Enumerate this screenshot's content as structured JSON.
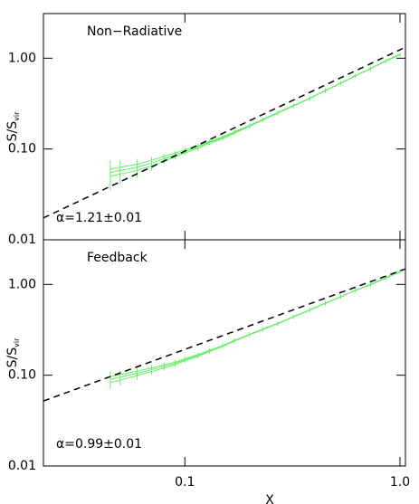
{
  "chart_data": [
    {
      "type": "line",
      "annotation": "Non−Radiative",
      "annotation_color": "#ff3030",
      "fit_label": "α=1.21±0.01",
      "ylabel": "S/S",
      "ylabel_sub": "vir",
      "xlim": [
        0.022,
        1.06
      ],
      "ylim": [
        0.01,
        3.1
      ],
      "log": true,
      "yticks": [
        {
          "value": 0.01,
          "label": "0.01"
        },
        {
          "value": 0.1,
          "label": "0.10"
        },
        {
          "value": 1,
          "label": "1.00"
        }
      ],
      "x": [
        0.045,
        0.05,
        0.06,
        0.07,
        0.08,
        0.09,
        0.1,
        0.115,
        0.13,
        0.15,
        0.17,
        0.2,
        0.23,
        0.27,
        0.32,
        0.38,
        0.45,
        0.53,
        0.62,
        0.73,
        0.86,
        1.0
      ],
      "series": [
        {
          "color": "#66ee66",
          "values": [
            0.055,
            0.058,
            0.063,
            0.07,
            0.078,
            0.086,
            0.094,
            0.105,
            0.118,
            0.133,
            0.152,
            0.18,
            0.21,
            0.25,
            0.3,
            0.36,
            0.44,
            0.53,
            0.64,
            0.77,
            0.93,
            1.1
          ],
          "errors": [
            0.02,
            0.017,
            0.015,
            0.012,
            0.01,
            0.009,
            0.008,
            0.008,
            0.008,
            0.009,
            0.01,
            0.012,
            0.013,
            0.015,
            0.018,
            0.022,
            0.026,
            0.03,
            0.036,
            0.042,
            0.05,
            0.06
          ]
        },
        {
          "color": "#66ee66",
          "values": [
            0.06,
            0.063,
            0.068,
            0.075,
            0.083,
            0.09,
            0.098,
            0.108,
            0.121,
            0.136,
            0.155,
            0.182,
            0.212,
            0.252,
            0.302,
            0.362,
            0.442,
            0.532,
            0.643,
            0.773,
            0.935,
            1.11
          ]
        },
        {
          "color": "#66ee66",
          "values": [
            0.05,
            0.053,
            0.058,
            0.065,
            0.073,
            0.082,
            0.09,
            0.102,
            0.115,
            0.13,
            0.149,
            0.178,
            0.208,
            0.248,
            0.298,
            0.358,
            0.438,
            0.528,
            0.637,
            0.767,
            0.925,
            1.09
          ]
        },
        {
          "color": "#000000",
          "style": "dashed",
          "x": [
            0.022,
            1.06
          ],
          "values": [
            0.0174,
            1.32
          ]
        }
      ]
    },
    {
      "type": "line",
      "annotation": "Feedback",
      "annotation_color": "#ff3030",
      "fit_label": "α=0.99±0.01",
      "ylabel": "S/S",
      "ylabel_sub": "vir",
      "xlabel": "X",
      "xlim": [
        0.022,
        1.06
      ],
      "ylim": [
        0.01,
        3.1
      ],
      "log": true,
      "yticks": [
        {
          "value": 0.01,
          "label": "0.01"
        },
        {
          "value": 0.1,
          "label": "0.10"
        },
        {
          "value": 1,
          "label": "1.00"
        }
      ],
      "xticks": [
        0.1,
        {
          "value": 1,
          "label": "1.0"
        }
      ],
      "x": [
        0.045,
        0.05,
        0.06,
        0.07,
        0.08,
        0.09,
        0.1,
        0.115,
        0.13,
        0.15,
        0.17,
        0.2,
        0.23,
        0.27,
        0.32,
        0.38,
        0.45,
        0.53,
        0.62,
        0.73,
        0.86,
        1.0
      ],
      "series": [
        {
          "color": "#66ee66",
          "values": [
            0.09,
            0.095,
            0.105,
            0.115,
            0.125,
            0.135,
            0.148,
            0.165,
            0.185,
            0.21,
            0.24,
            0.28,
            0.32,
            0.37,
            0.44,
            0.52,
            0.62,
            0.73,
            0.86,
            1.0,
            1.18,
            1.38
          ],
          "errors": [
            0.02,
            0.018,
            0.016,
            0.014,
            0.013,
            0.012,
            0.012,
            0.012,
            0.013,
            0.014,
            0.016,
            0.018,
            0.02,
            0.022,
            0.026,
            0.03,
            0.035,
            0.04,
            0.046,
            0.052,
            0.06,
            0.07
          ]
        },
        {
          "color": "#66ee66",
          "values": [
            0.097,
            0.102,
            0.111,
            0.12,
            0.13,
            0.139,
            0.152,
            0.168,
            0.188,
            0.212,
            0.242,
            0.282,
            0.322,
            0.372,
            0.442,
            0.522,
            0.622,
            0.732,
            0.862,
            1.0,
            1.19,
            1.39
          ]
        },
        {
          "color": "#66ee66",
          "values": [
            0.083,
            0.088,
            0.099,
            0.11,
            0.12,
            0.131,
            0.144,
            0.162,
            0.182,
            0.208,
            0.238,
            0.278,
            0.318,
            0.368,
            0.438,
            0.518,
            0.618,
            0.728,
            0.858,
            0.99,
            1.17,
            1.37
          ]
        },
        {
          "color": "#000000",
          "style": "dashed",
          "x": [
            0.022,
            1.06
          ],
          "values": [
            0.052,
            1.48
          ]
        }
      ]
    }
  ]
}
